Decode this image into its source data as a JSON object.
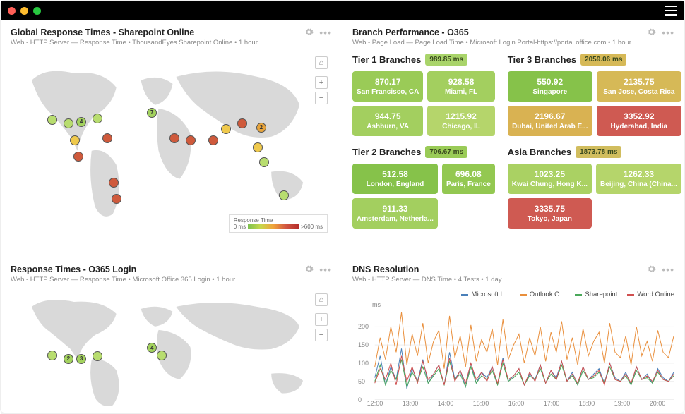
{
  "window": {
    "dot_colors": [
      "#ff5f57",
      "#febc2e",
      "#28c840"
    ]
  },
  "panels": {
    "map1": {
      "title": "Global Response Times - Sharepoint Online",
      "subtitle": "Web - HTTP Server — Response Time • ThousandEyes Sharepoint Online • 1 hour",
      "legend_title": "Response Time",
      "legend_min": "0 ms",
      "legend_max": ">600 ms",
      "markers": [
        {
          "x": 13,
          "y": 37,
          "color": "#b8dd6f",
          "label": ""
        },
        {
          "x": 18,
          "y": 39,
          "color": "#b8dd6f",
          "label": ""
        },
        {
          "x": 22,
          "y": 38,
          "color": "#a3d25e",
          "label": "4"
        },
        {
          "x": 20,
          "y": 48,
          "color": "#efc94c",
          "label": ""
        },
        {
          "x": 21,
          "y": 57,
          "color": "#cf5a3c",
          "label": ""
        },
        {
          "x": 27,
          "y": 36,
          "color": "#b8dd6f",
          "label": ""
        },
        {
          "x": 30,
          "y": 47,
          "color": "#cf5a3c",
          "label": ""
        },
        {
          "x": 32,
          "y": 71,
          "color": "#cf5a3c",
          "label": ""
        },
        {
          "x": 33,
          "y": 80,
          "color": "#cf5a3c",
          "label": ""
        },
        {
          "x": 44,
          "y": 33,
          "color": "#a3d25e",
          "label": "7"
        },
        {
          "x": 51,
          "y": 47,
          "color": "#cf5a3c",
          "label": ""
        },
        {
          "x": 56,
          "y": 48,
          "color": "#cf5a3c",
          "label": ""
        },
        {
          "x": 63,
          "y": 48,
          "color": "#cf5a3c",
          "label": ""
        },
        {
          "x": 67,
          "y": 42,
          "color": "#efc94c",
          "label": ""
        },
        {
          "x": 72,
          "y": 39,
          "color": "#cf5a3c",
          "label": ""
        },
        {
          "x": 78,
          "y": 41,
          "color": "#e7a43c",
          "label": "2"
        },
        {
          "x": 77,
          "y": 52,
          "color": "#efc94c",
          "label": ""
        },
        {
          "x": 79,
          "y": 60,
          "color": "#b8dd6f",
          "label": ""
        },
        {
          "x": 85,
          "y": 78,
          "color": "#b8dd6f",
          "label": ""
        }
      ]
    },
    "map2": {
      "title": "Response Times - O365 Login",
      "subtitle": "Web - HTTP Server — Response Time • Microsoft Office 365 Login • 1 hour",
      "markers": [
        {
          "x": 13,
          "y": 55,
          "color": "#b8dd6f",
          "label": ""
        },
        {
          "x": 18,
          "y": 58,
          "color": "#a3d25e",
          "label": "2"
        },
        {
          "x": 22,
          "y": 58,
          "color": "#a3d25e",
          "label": "3"
        },
        {
          "x": 27,
          "y": 56,
          "color": "#b8dd6f",
          "label": ""
        },
        {
          "x": 44,
          "y": 49,
          "color": "#a3d25e",
          "label": "4"
        },
        {
          "x": 47,
          "y": 55,
          "color": "#b8dd6f",
          "label": ""
        }
      ]
    },
    "branch": {
      "title": "Branch Performance - O365",
      "subtitle": "Web - Page Load — Page Load Time • Microsoft Login Portal-https://portal.office.com • 1 hour",
      "tiers": [
        {
          "name": "Tier 1 Branches",
          "badge": "989.85 ms",
          "badge_color": "#a9d46a",
          "cards": [
            {
              "v": "870.17",
              "l": "San Francisco, CA",
              "c": "#9acb57"
            },
            {
              "v": "928.58",
              "l": "Miami, FL",
              "c": "#a3cf5f"
            },
            {
              "v": "944.75",
              "l": "Ashburn, VA",
              "c": "#a3cf5f"
            },
            {
              "v": "1215.92",
              "l": "Chicago, IL",
              "c": "#b5d56b"
            }
          ]
        },
        {
          "name": "Tier 3 Branches",
          "badge": "2059.06 ms",
          "badge_color": "#d6b957",
          "cards": [
            {
              "v": "550.92",
              "l": "Singapore",
              "c": "#86c24a"
            },
            {
              "v": "2135.75",
              "l": "San Jose, Costa Rica",
              "c": "#d6b957"
            },
            {
              "v": "2196.67",
              "l": "Dubai, United Arab E...",
              "c": "#d9b252"
            },
            {
              "v": "3352.92",
              "l": "Hyderabad, India",
              "c": "#cf5a52"
            }
          ]
        },
        {
          "name": "Tier 2 Branches",
          "badge": "706.67 ms",
          "badge_color": "#9acb57",
          "cards": [
            {
              "v": "512.58",
              "l": "London, England",
              "c": "#86c24a"
            },
            {
              "v": "696.08",
              "l": "Paris, France",
              "c": "#93c851"
            },
            {
              "v": "911.33",
              "l": "Amsterdam, Netherla...",
              "c": "#a3cf5f"
            }
          ]
        },
        {
          "name": "Asia Branches",
          "badge": "1873.78 ms",
          "badge_color": "#d1bd5e",
          "cards": [
            {
              "v": "1023.25",
              "l": "Kwai Chung, Hong K...",
              "c": "#aad163"
            },
            {
              "v": "1262.33",
              "l": "Beijing, China (China...",
              "c": "#b5d56b"
            },
            {
              "v": "3335.75",
              "l": "Tokyo, Japan",
              "c": "#cf5a52"
            }
          ]
        }
      ]
    },
    "dns": {
      "title": "DNS Resolution",
      "subtitle": "Web - HTTP Server — DNS Time • 4 Tests • 1 day",
      "y_unit": "ms",
      "ylim": [
        0,
        250
      ],
      "yticks": [
        0,
        50,
        100,
        150,
        200
      ],
      "xticks": [
        "12:00",
        "13:00",
        "14:00",
        "15:00",
        "16:00",
        "17:00",
        "18:00",
        "19:00",
        "20:00",
        "21:00"
      ],
      "series": [
        {
          "name": "Microsoft L...",
          "color": "#4a80b9",
          "data": [
            60,
            120,
            40,
            90,
            55,
            140,
            30,
            85,
            50,
            110,
            45,
            70,
            95,
            40,
            130,
            55,
            80,
            35,
            100,
            45,
            75,
            60,
            90,
            40,
            115,
            50,
            65,
            85,
            40,
            70,
            55,
            95,
            45,
            80,
            60,
            105,
            50,
            75,
            40,
            90,
            55,
            70,
            85,
            45,
            100,
            60,
            50,
            75,
            40,
            90,
            55,
            70,
            45,
            85,
            60,
            50,
            75,
            40,
            95,
            55
          ]
        },
        {
          "name": "Outlook O...",
          "color": "#e98f3c",
          "data": [
            90,
            170,
            110,
            200,
            130,
            240,
            95,
            180,
            120,
            210,
            100,
            160,
            190,
            85,
            230,
            115,
            175,
            90,
            205,
            105,
            165,
            130,
            195,
            95,
            220,
            110,
            150,
            180,
            100,
            170,
            120,
            200,
            105,
            185,
            130,
            215,
            110,
            170,
            95,
            195,
            120,
            160,
            185,
            100,
            210,
            130,
            115,
            175,
            95,
            200,
            120,
            160,
            105,
            190,
            130,
            115,
            175,
            95,
            205,
            120
          ]
        },
        {
          "name": "Sharepoint",
          "color": "#4aa85a",
          "data": [
            50,
            95,
            40,
            80,
            55,
            110,
            35,
            75,
            50,
            90,
            45,
            65,
            85,
            40,
            105,
            55,
            70,
            35,
            90,
            45,
            65,
            55,
            80,
            40,
            100,
            50,
            60,
            75,
            40,
            65,
            55,
            85,
            45,
            70,
            55,
            95,
            50,
            65,
            40,
            80,
            55,
            60,
            75,
            45,
            90,
            55,
            50,
            65,
            40,
            80,
            55,
            60,
            45,
            75,
            55,
            50,
            65,
            40,
            85,
            55
          ]
        },
        {
          "name": "Word Online",
          "color": "#d05050",
          "data": [
            45,
            85,
            55,
            100,
            40,
            120,
            50,
            90,
            45,
            105,
            55,
            70,
            95,
            40,
            115,
            50,
            80,
            45,
            100,
            55,
            75,
            50,
            90,
            45,
            110,
            55,
            65,
            85,
            40,
            75,
            50,
            95,
            45,
            80,
            55,
            105,
            50,
            70,
            45,
            90,
            55,
            65,
            80,
            40,
            100,
            55,
            50,
            70,
            45,
            90,
            55,
            65,
            50,
            80,
            55,
            50,
            70,
            45,
            95,
            55
          ]
        }
      ]
    }
  }
}
